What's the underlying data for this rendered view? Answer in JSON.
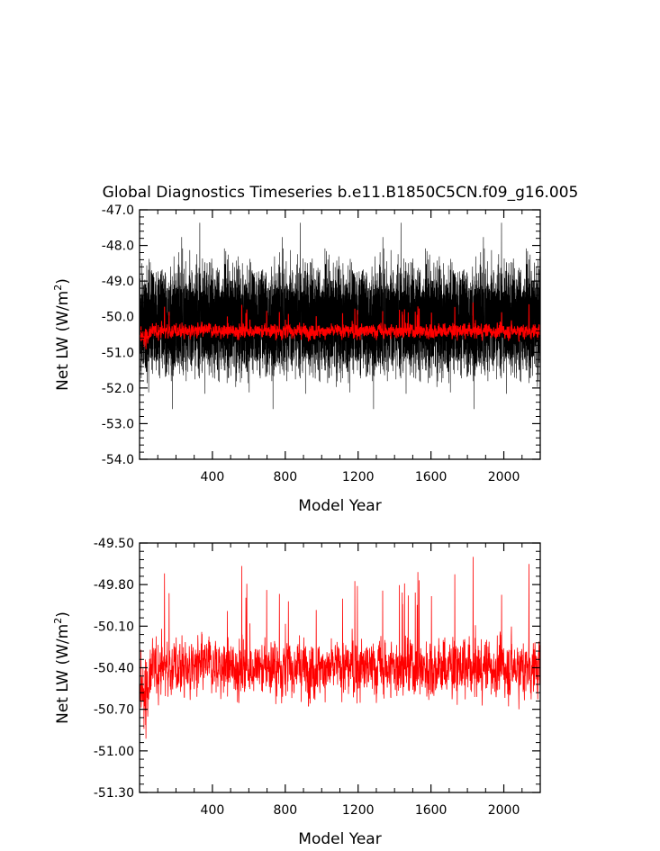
{
  "title": "Global Diagnostics Timeseries b.e11.B1850C5CN.f09_g16.005",
  "chart_data": [
    {
      "type": "line",
      "xlabel": "Model Year",
      "ylabel_main": "Net LW (W/m",
      "ylabel_sup": "2",
      "ylabel_tail": ")",
      "xlim": [
        0,
        2200
      ],
      "ylim": [
        -54.0,
        -47.0
      ],
      "xticks": [
        400,
        800,
        1200,
        1600,
        2000
      ],
      "xtick_labels": [
        "400",
        "800",
        "1200",
        "1600",
        "2000"
      ],
      "yticks": [
        -54.0,
        -53.0,
        -52.0,
        -51.0,
        -50.0,
        -49.0,
        -48.0,
        -47.0
      ],
      "ytick_labels": [
        "-54.0",
        "-53.0",
        "-52.0",
        "-51.0",
        "-50.0",
        "-49.0",
        "-48.0",
        "-47.0"
      ],
      "series": [
        {
          "style": "monthly",
          "color": "#000000",
          "mean": -50.1,
          "range": [
            -53.1,
            -47.2
          ]
        },
        {
          "style": "annual",
          "color": "#ff0000",
          "mean": -50.4,
          "range": [
            -51.15,
            -49.6
          ]
        }
      ]
    },
    {
      "type": "line",
      "xlabel": "Model Year",
      "ylabel_main": "Net LW (W/m",
      "ylabel_sup": "2",
      "ylabel_tail": ")",
      "xlim": [
        0,
        2200
      ],
      "ylim": [
        -51.3,
        -49.5
      ],
      "xticks": [
        400,
        800,
        1200,
        1600,
        2000
      ],
      "xtick_labels": [
        "400",
        "800",
        "1200",
        "1600",
        "2000"
      ],
      "yticks": [
        -51.3,
        -51.0,
        -50.7,
        -50.4,
        -50.1,
        -49.8,
        -49.5
      ],
      "ytick_labels": [
        "-51.30",
        "-51.00",
        "-50.70",
        "-50.40",
        "-50.10",
        "-49.80",
        "-49.50"
      ],
      "series": [
        {
          "style": "annual",
          "color": "#ff0000",
          "mean": -50.4,
          "range": [
            -51.15,
            -49.6
          ]
        }
      ]
    }
  ]
}
